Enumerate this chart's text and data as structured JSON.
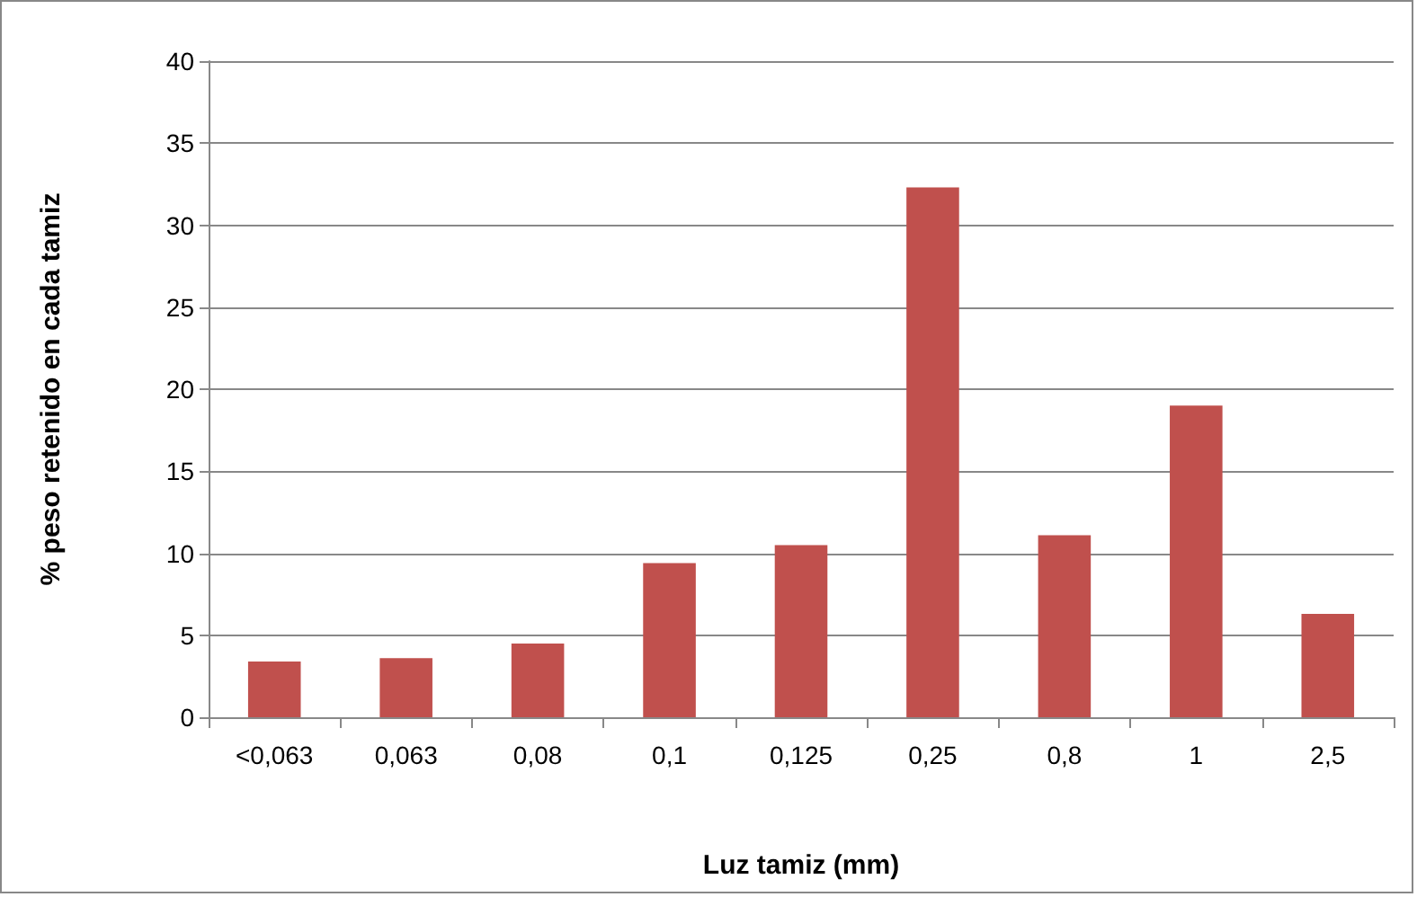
{
  "chart_data": {
    "type": "bar",
    "xlabel": "Luz tamiz (mm)",
    "ylabel": "% peso retenido en cada tamiz",
    "categories": [
      "<0,063",
      "0,063",
      "0,08",
      "0,1",
      "0,125",
      "0,25",
      "0,8",
      "1",
      "2,5"
    ],
    "values": [
      3.4,
      3.6,
      4.5,
      9.4,
      10.5,
      32.3,
      11.1,
      19,
      6.3
    ],
    "color": "#c0504d",
    "ylim": [
      0,
      40
    ],
    "yticks": [
      0,
      5,
      10,
      15,
      20,
      25,
      30,
      35,
      40
    ],
    "grid": "y"
  }
}
